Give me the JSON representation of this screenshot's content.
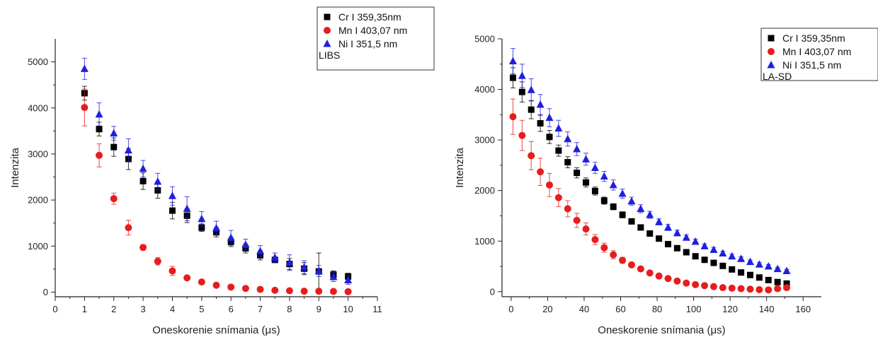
{
  "chart_data": [
    {
      "type": "scatter",
      "panel_label": "LIBS",
      "xlabel": "Oneskorenie snímania (μs)",
      "ylabel": "Intenzita",
      "xlim": [
        0,
        11
      ],
      "ylim": [
        -100,
        5500
      ],
      "xticks": [
        0,
        1,
        2,
        3,
        4,
        5,
        6,
        7,
        8,
        9,
        10,
        11
      ],
      "yticks": [
        0,
        1000,
        2000,
        3000,
        4000,
        5000
      ],
      "legend_placement": "top-right",
      "grid": false,
      "series": [
        {
          "name": "Cr I 359,35nm",
          "marker": "square",
          "color": "#000000",
          "x": [
            1,
            1.5,
            2,
            2.5,
            3,
            3.5,
            4,
            4.5,
            5,
            5.5,
            6,
            6.5,
            7,
            7.5,
            8,
            8.5,
            9,
            9.5,
            10
          ],
          "y": [
            4320,
            3540,
            3150,
            2890,
            2410,
            2210,
            1770,
            1660,
            1400,
            1300,
            1090,
            950,
            800,
            700,
            610,
            510,
            450,
            380,
            340
          ],
          "err": [
            150,
            150,
            200,
            230,
            180,
            170,
            180,
            150,
            80,
            100,
            100,
            100,
            100,
            60,
            120,
            130,
            400,
            80,
            70
          ]
        },
        {
          "name": "Mn I 403,07 nm",
          "marker": "circle",
          "color": "#e81c1c",
          "x": [
            1,
            1.5,
            2,
            2.5,
            3,
            3.5,
            4,
            4.5,
            5,
            5.5,
            6,
            6.5,
            7,
            7.5,
            8,
            8.5,
            9,
            9.5,
            10
          ],
          "y": [
            4010,
            2970,
            2030,
            1400,
            970,
            670,
            460,
            310,
            220,
            150,
            110,
            80,
            60,
            40,
            30,
            20,
            20,
            15,
            10
          ],
          "err": [
            400,
            250,
            120,
            160,
            60,
            80,
            100,
            30,
            20,
            15,
            15,
            10,
            10,
            10,
            10,
            10,
            10,
            10,
            10
          ]
        },
        {
          "name": "Ni I 351,5 nm",
          "marker": "triangle",
          "color": "#1f1fe0",
          "x": [
            1,
            1.5,
            2,
            2.5,
            3,
            3.5,
            4,
            4.5,
            5,
            5.5,
            6,
            6.5,
            7,
            7.5,
            8,
            8.5,
            9,
            9.5,
            10
          ],
          "y": [
            4850,
            3860,
            3450,
            3080,
            2680,
            2400,
            2090,
            1810,
            1590,
            1390,
            1180,
            1030,
            890,
            750,
            640,
            540,
            460,
            330,
            260
          ],
          "err": [
            230,
            250,
            150,
            250,
            180,
            180,
            200,
            260,
            160,
            150,
            160,
            120,
            120,
            100,
            170,
            140,
            120,
            100,
            90
          ]
        }
      ]
    },
    {
      "type": "scatter",
      "panel_label": "LA-SD",
      "xlabel": "Oneskorenie snímania (μs)",
      "ylabel": "Intenzita",
      "xlim": [
        -5,
        170
      ],
      "ylim": [
        -100,
        5000
      ],
      "xticks": [
        0,
        20,
        40,
        60,
        80,
        100,
        120,
        140,
        160
      ],
      "yticks": [
        0,
        1000,
        2000,
        3000,
        4000,
        5000
      ],
      "legend_placement": "top-right",
      "grid": false,
      "series": [
        {
          "name": "Cr I 359,35nm",
          "marker": "square",
          "color": "#000000",
          "x": [
            1,
            6,
            11,
            16,
            21,
            26,
            31,
            36,
            41,
            46,
            51,
            56,
            61,
            66,
            71,
            76,
            81,
            86,
            91,
            96,
            101,
            106,
            111,
            116,
            121,
            126,
            131,
            136,
            141,
            146,
            151
          ],
          "y": [
            4230,
            3950,
            3600,
            3330,
            3060,
            2790,
            2560,
            2350,
            2160,
            1990,
            1800,
            1680,
            1520,
            1390,
            1270,
            1150,
            1050,
            940,
            860,
            780,
            700,
            630,
            570,
            510,
            440,
            380,
            330,
            280,
            230,
            190,
            160
          ],
          "err": [
            200,
            200,
            180,
            160,
            130,
            110,
            110,
            100,
            90,
            80,
            70,
            60,
            60,
            40,
            40,
            30,
            30,
            30,
            30,
            25,
            25,
            25,
            25,
            25,
            25,
            25,
            25,
            25,
            25,
            20,
            20
          ]
        },
        {
          "name": "Mn I 403,07 nm",
          "marker": "circle",
          "color": "#e81c1c",
          "x": [
            1,
            6,
            11,
            16,
            21,
            26,
            31,
            36,
            41,
            46,
            51,
            56,
            61,
            66,
            71,
            76,
            81,
            86,
            91,
            96,
            101,
            106,
            111,
            116,
            121,
            126,
            131,
            136,
            141,
            146,
            151
          ],
          "y": [
            3460,
            3090,
            2690,
            2370,
            2110,
            1860,
            1640,
            1410,
            1240,
            1030,
            870,
            730,
            620,
            530,
            450,
            370,
            310,
            260,
            210,
            170,
            140,
            120,
            100,
            80,
            70,
            60,
            50,
            40,
            35,
            60,
            80
          ],
          "err": [
            350,
            300,
            280,
            270,
            230,
            180,
            160,
            140,
            120,
            100,
            90,
            80,
            60,
            40,
            30,
            30,
            20,
            20,
            20,
            15,
            15,
            15,
            10,
            10,
            10,
            10,
            10,
            10,
            10,
            10,
            10
          ]
        },
        {
          "name": "Ni I 351,5 nm",
          "marker": "triangle",
          "color": "#1f1fe0",
          "x": [
            1,
            6,
            11,
            16,
            21,
            26,
            31,
            36,
            41,
            46,
            51,
            56,
            61,
            66,
            71,
            76,
            81,
            86,
            91,
            96,
            101,
            106,
            111,
            116,
            121,
            126,
            131,
            136,
            141,
            146,
            151
          ],
          "y": [
            4560,
            4270,
            3990,
            3700,
            3440,
            3230,
            3020,
            2820,
            2620,
            2450,
            2280,
            2110,
            1940,
            1790,
            1640,
            1520,
            1380,
            1270,
            1160,
            1070,
            990,
            900,
            830,
            760,
            700,
            650,
            590,
            540,
            500,
            450,
            410
          ],
          "err": [
            250,
            230,
            220,
            200,
            180,
            160,
            140,
            130,
            120,
            110,
            100,
            100,
            90,
            80,
            80,
            70,
            60,
            60,
            55,
            50,
            50,
            45,
            45,
            40,
            40,
            40,
            35,
            35,
            35,
            30,
            30
          ]
        }
      ]
    }
  ]
}
